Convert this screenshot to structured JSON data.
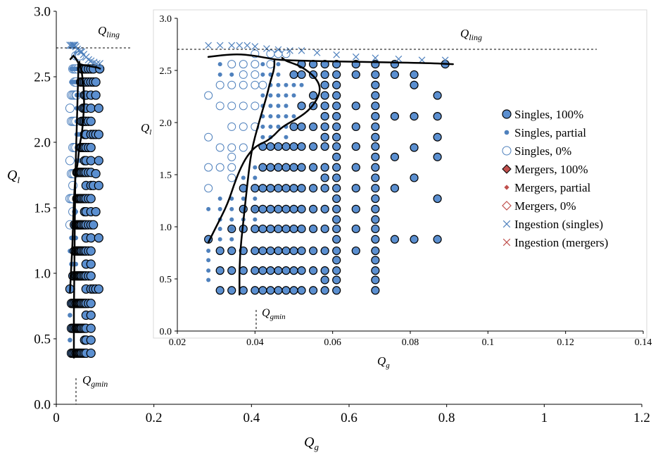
{
  "chart_data": [
    {
      "type": "scatter",
      "panel": "outer",
      "xlabel": "Q",
      "xlabel_sub": "g",
      "ylabel": "Q",
      "ylabel_sub": "l",
      "xlim": [
        0,
        1.2
      ],
      "ylim": [
        0,
        3.0
      ],
      "xticks": [
        "0",
        "0.2",
        "0.4",
        "0.6",
        "0.8",
        "1",
        "1.2"
      ],
      "yticks": [
        "0.0",
        "0.5",
        "1.0",
        "1.5",
        "2.0",
        "2.5",
        "3.0"
      ],
      "annotations": {
        "qling": {
          "label": "Q",
          "sub": "ling",
          "y": 2.7
        },
        "qgmin": {
          "label": "Q",
          "sub": "gmin",
          "x": 0.04
        }
      },
      "grid": false,
      "series": [
        {
          "name": "Singles, 100%",
          "marker": "circle-filled-outlined",
          "x": [
            0.04,
            0.04,
            0.04,
            0.04,
            0.04,
            0.04,
            0.045,
            0.045,
            0.045,
            0.045,
            0.045,
            0.045,
            0.05,
            0.05,
            0.05,
            0.05,
            0.05,
            0.05,
            0.06,
            0.06,
            0.06,
            0.06,
            0.06,
            0.06,
            0.07,
            0.07,
            0.07,
            0.07,
            0.07,
            0.07,
            0.08,
            0.08,
            0.08,
            0.08,
            0.08,
            0.08,
            0.09,
            0.09,
            0.09,
            0.09
          ],
          "y": [
            0.4,
            0.6,
            0.8,
            1.0,
            1.2,
            1.4,
            0.5,
            0.9,
            1.3,
            1.7,
            2.1,
            2.5,
            0.4,
            0.8,
            1.2,
            1.6,
            2.0,
            2.4,
            0.4,
            0.7,
            1.0,
            1.5,
            1.9,
            2.3,
            0.4,
            0.8,
            1.2,
            1.6,
            2.0,
            2.4,
            0.5,
            0.9,
            1.3,
            1.7,
            2.1,
            2.5,
            0.9,
            1.3,
            1.7,
            2.1
          ]
        },
        {
          "name": "Singles, partial",
          "marker": "dot",
          "x": [
            0.03,
            0.03,
            0.03,
            0.03,
            0.035,
            0.035,
            0.035,
            0.035
          ],
          "y": [
            0.6,
            1.0,
            1.5,
            2.0,
            0.8,
            1.3,
            1.8,
            2.4
          ]
        },
        {
          "name": "Singles, 0%",
          "marker": "circle-open",
          "x": [
            0.03,
            0.03,
            0.035
          ],
          "y": [
            1.4,
            2.2,
            1.9
          ]
        }
      ]
    },
    {
      "type": "scatter",
      "panel": "inset",
      "xlabel": "Q",
      "xlabel_sub": "g",
      "ylabel": "Q",
      "ylabel_sub": "l",
      "xlim": [
        0.02,
        0.14
      ],
      "ylim": [
        0,
        3.0
      ],
      "xticks": [
        "0.02",
        "0.04",
        "0.06",
        "0.08",
        "0.1",
        "0.12",
        "0.14"
      ],
      "yticks": [
        "0.0",
        "0.5",
        "1.0",
        "1.5",
        "2.0",
        "2.5",
        "3.0"
      ],
      "annotations": {
        "qling": {
          "label": "Q",
          "sub": "ling",
          "y": 2.7
        },
        "qgmin": {
          "label": "Q",
          "sub": "gmin",
          "x": 0.0405
        }
      },
      "grid": false,
      "legend_position": "right",
      "legend": [
        {
          "label": "Singles, 100%",
          "marker": "circle-filled-outlined",
          "color": "#5b8fd0"
        },
        {
          "label": "Singles, partial",
          "marker": "dot",
          "color": "#4f81bd"
        },
        {
          "label": "Singles, 0%",
          "marker": "circle-open",
          "color": "#4f81bd"
        },
        {
          "label": "Mergers, 100%",
          "marker": "diamond-filled-outlined",
          "color": "#c0504d"
        },
        {
          "label": "Mergers, partial",
          "marker": "diamond-small",
          "color": "#c0504d"
        },
        {
          "label": "Mergers, 0%",
          "marker": "diamond-open",
          "color": "#c0504d"
        },
        {
          "label": "Ingestion (singles)",
          "marker": "x",
          "color": "#4f81bd"
        },
        {
          "label": "Ingestion (mergers)",
          "marker": "x",
          "color": "#c0504d"
        }
      ],
      "series": [
        {
          "name": "Singles, 100%",
          "marker": "circle-filled-outlined",
          "columns": [
            {
              "x": 0.028,
              "y": [
                0.88
              ]
            },
            {
              "x": 0.031,
              "y": [
                0.39,
                0.58,
                0.77
              ]
            },
            {
              "x": 0.034,
              "y": [
                0.39,
                0.58,
                0.77,
                0.98
              ]
            },
            {
              "x": 0.037,
              "y": [
                0.39,
                0.58,
                0.77,
                0.98,
                1.17,
                1.37
              ]
            },
            {
              "x": 0.04,
              "y": [
                0.39,
                0.58,
                0.77,
                0.98,
                1.17,
                1.37
              ]
            },
            {
              "x": 0.042,
              "y": [
                0.39,
                0.58,
                0.77,
                0.98,
                1.17,
                1.37,
                1.57,
                1.77
              ]
            },
            {
              "x": 0.044,
              "y": [
                0.39,
                0.58,
                0.77,
                0.98,
                1.17,
                1.37,
                1.57,
                1.77
              ]
            },
            {
              "x": 0.046,
              "y": [
                0.39,
                0.58,
                0.77,
                0.98,
                1.17,
                1.37,
                1.57,
                1.77
              ]
            },
            {
              "x": 0.048,
              "y": [
                0.39,
                0.58,
                0.77,
                0.98,
                1.17,
                1.37,
                1.57,
                1.77
              ]
            },
            {
              "x": 0.05,
              "y": [
                0.39,
                0.58,
                0.77,
                0.98,
                1.17,
                1.37,
                1.57,
                1.77,
                1.96,
                2.46
              ]
            },
            {
              "x": 0.052,
              "y": [
                0.39,
                0.58,
                0.77,
                0.98,
                1.17,
                1.37,
                1.57,
                1.77,
                1.96,
                2.16,
                2.46,
                2.56
              ]
            },
            {
              "x": 0.055,
              "y": [
                0.39,
                0.58,
                0.77,
                0.98,
                1.17,
                1.37,
                1.57,
                1.77,
                1.96,
                2.16,
                2.26,
                2.46,
                2.56
              ]
            },
            {
              "x": 0.058,
              "y": [
                0.39,
                0.49,
                0.58,
                0.77,
                0.98,
                1.17,
                1.37,
                1.47,
                1.57,
                1.77,
                1.86,
                1.96,
                2.06,
                2.16,
                2.26,
                2.36,
                2.46,
                2.56
              ]
            },
            {
              "x": 0.061,
              "y": [
                0.39,
                0.49,
                0.58,
                0.68,
                0.77,
                0.88,
                0.98,
                1.07,
                1.17,
                1.27,
                1.37,
                1.47,
                1.57,
                1.67,
                1.77,
                1.86,
                1.96,
                2.06,
                2.16,
                2.26,
                2.36,
                2.46,
                2.56
              ]
            },
            {
              "x": 0.066,
              "y": [
                0.77,
                0.98,
                1.17,
                1.37,
                1.57,
                1.77,
                1.96,
                2.16,
                2.46,
                2.56
              ]
            },
            {
              "x": 0.071,
              "y": [
                0.39,
                0.49,
                0.58,
                0.68,
                0.77,
                0.88,
                0.98,
                1.07,
                1.17,
                1.27,
                1.37,
                1.47,
                1.57,
                1.67,
                1.77,
                1.86,
                1.96,
                2.06,
                2.16,
                2.26,
                2.36,
                2.46,
                2.56
              ]
            },
            {
              "x": 0.076,
              "y": [
                0.88,
                1.37,
                1.67,
                2.06,
                2.46,
                2.56
              ]
            },
            {
              "x": 0.081,
              "y": [
                0.88,
                1.47,
                1.76,
                2.06,
                2.36,
                2.46
              ]
            },
            {
              "x": 0.087,
              "y": [
                0.88,
                1.27,
                1.67,
                1.86,
                2.06,
                2.26
              ]
            },
            {
              "x": 0.089,
              "y": [
                2.56
              ]
            }
          ]
        },
        {
          "name": "Singles, partial",
          "marker": "dot",
          "columns": [
            {
              "x": 0.028,
              "y": [
                0.49,
                0.58,
                0.68,
                0.77,
                1.17
              ]
            },
            {
              "x": 0.031,
              "y": [
                0.88,
                0.98,
                1.07,
                1.17,
                1.27,
                2.46,
                2.56
              ]
            },
            {
              "x": 0.034,
              "y": [
                0.88,
                0.98,
                1.07,
                1.17,
                1.27,
                2.46,
                2.56
              ]
            },
            {
              "x": 0.037,
              "y": [
                1.07,
                1.17,
                1.27,
                1.47,
                2.46,
                2.56
              ]
            },
            {
              "x": 0.04,
              "y": [
                1.07,
                1.17,
                1.27,
                1.47,
                1.57,
                2.46,
                2.56
              ]
            },
            {
              "x": 0.042,
              "y": [
                1.86,
                1.96,
                2.06,
                2.16,
                2.26,
                2.36,
                2.46,
                2.56
              ]
            },
            {
              "x": 0.044,
              "y": [
                1.86,
                1.96,
                2.06,
                2.16,
                2.26,
                2.36,
                2.46,
                2.56
              ]
            },
            {
              "x": 0.046,
              "y": [
                1.96,
                2.06,
                2.16,
                2.26,
                2.36,
                2.46,
                2.56
              ]
            },
            {
              "x": 0.048,
              "y": [
                1.86,
                1.96,
                2.06,
                2.16,
                2.26,
                2.36
              ]
            },
            {
              "x": 0.05,
              "y": [
                2.06,
                2.26,
                2.36
              ]
            },
            {
              "x": 0.052,
              "y": [
                2.36
              ]
            }
          ]
        },
        {
          "name": "Singles, 0%",
          "marker": "circle-open",
          "columns": [
            {
              "x": 0.028,
              "y": [
                1.37,
                1.57,
                1.86,
                2.26
              ]
            },
            {
              "x": 0.031,
              "y": [
                1.57,
                1.76,
                2.16,
                2.36
              ]
            },
            {
              "x": 0.034,
              "y": [
                1.47,
                1.57,
                1.67,
                1.76,
                1.96,
                2.16,
                2.36,
                2.56
              ]
            },
            {
              "x": 0.037,
              "y": [
                1.76,
                1.96,
                2.16,
                2.36,
                2.46,
                2.56
              ]
            },
            {
              "x": 0.04,
              "y": [
                1.96,
                2.16,
                2.36,
                2.46,
                2.56,
                2.66
              ]
            },
            {
              "x": 0.042,
              "y": [
                2.36
              ]
            },
            {
              "x": 0.044,
              "y": [
                2.56,
                2.66
              ]
            },
            {
              "x": 0.046,
              "y": [
                2.66
              ]
            },
            {
              "x": 0.048,
              "y": [
                2.66
              ]
            }
          ]
        },
        {
          "name": "Ingestion (singles)",
          "marker": "x",
          "x": [
            0.028,
            0.031,
            0.034,
            0.036,
            0.038,
            0.04,
            0.043,
            0.046,
            0.049,
            0.052,
            0.056,
            0.061,
            0.066,
            0.071,
            0.077,
            0.083,
            0.089
          ],
          "y": [
            2.74,
            2.74,
            2.74,
            2.74,
            2.74,
            2.73,
            2.71,
            2.7,
            2.69,
            2.69,
            2.67,
            2.65,
            2.63,
            2.62,
            2.61,
            2.6,
            2.6
          ]
        }
      ],
      "boundary_curves": [
        {
          "x": [
            0.028,
            0.035,
            0.04,
            0.043,
            0.046,
            0.055,
            0.07,
            0.085,
            0.091
          ],
          "y": [
            2.63,
            2.66,
            2.64,
            2.62,
            2.6,
            2.59,
            2.58,
            2.57,
            2.56
          ]
        },
        {
          "x": [
            0.028,
            0.03,
            0.033,
            0.035,
            0.037,
            0.039,
            0.041,
            0.043,
            0.045,
            0.047,
            0.052,
            0.055,
            0.057,
            0.056,
            0.052,
            0.048,
            0.047
          ],
          "y": [
            0.85,
            1.0,
            1.22,
            1.45,
            1.62,
            1.73,
            1.79,
            1.82,
            1.88,
            1.96,
            2.06,
            2.16,
            2.3,
            2.42,
            2.54,
            2.59,
            2.62
          ]
        },
        {
          "x": [
            0.036,
            0.036,
            0.037,
            0.038,
            0.039,
            0.041,
            0.043,
            0.044,
            0.045,
            0.045
          ],
          "y": [
            0.35,
            0.7,
            1.05,
            1.4,
            1.72,
            2.0,
            2.25,
            2.4,
            2.52,
            2.6
          ]
        }
      ]
    }
  ],
  "colors": {
    "singles_fill": "#5b8fd0",
    "singles_dot": "#4f81bd",
    "marker_outline": "#000000",
    "mergers": "#c0504d",
    "curve": "#000000"
  }
}
